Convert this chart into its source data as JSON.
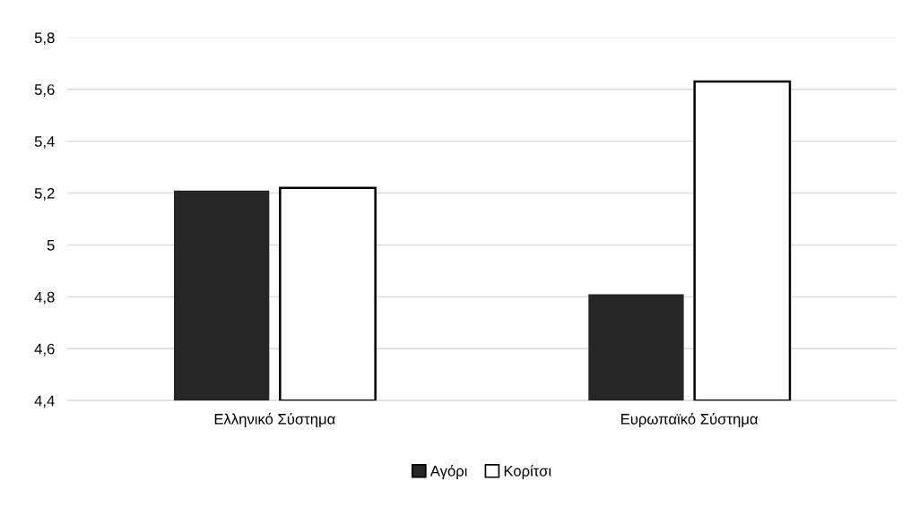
{
  "chart_data": {
    "type": "bar",
    "categories": [
      "Ελληνικό Σύστημα",
      "Ευρωπαϊκό Σύστημα"
    ],
    "series": [
      {
        "name": "Αγόρι",
        "color": "#262626",
        "values": [
          5.21,
          4.81
        ]
      },
      {
        "name": "Κορίτσι",
        "color": "#ffffff",
        "values": [
          5.22,
          5.63
        ]
      }
    ],
    "ylim": [
      4.4,
      5.8
    ],
    "yticks": [
      {
        "value": 4.4,
        "label": "4,4"
      },
      {
        "value": 4.6,
        "label": "4,6"
      },
      {
        "value": 4.8,
        "label": "4,8"
      },
      {
        "value": 5,
        "label": "5"
      },
      {
        "value": 5.2,
        "label": "5,2"
      },
      {
        "value": 5.4,
        "label": "5,4"
      },
      {
        "value": 5.6,
        "label": "5,6"
      },
      {
        "value": 5.8,
        "label": "5,8"
      }
    ],
    "grid": "y",
    "legend": "bottom"
  }
}
